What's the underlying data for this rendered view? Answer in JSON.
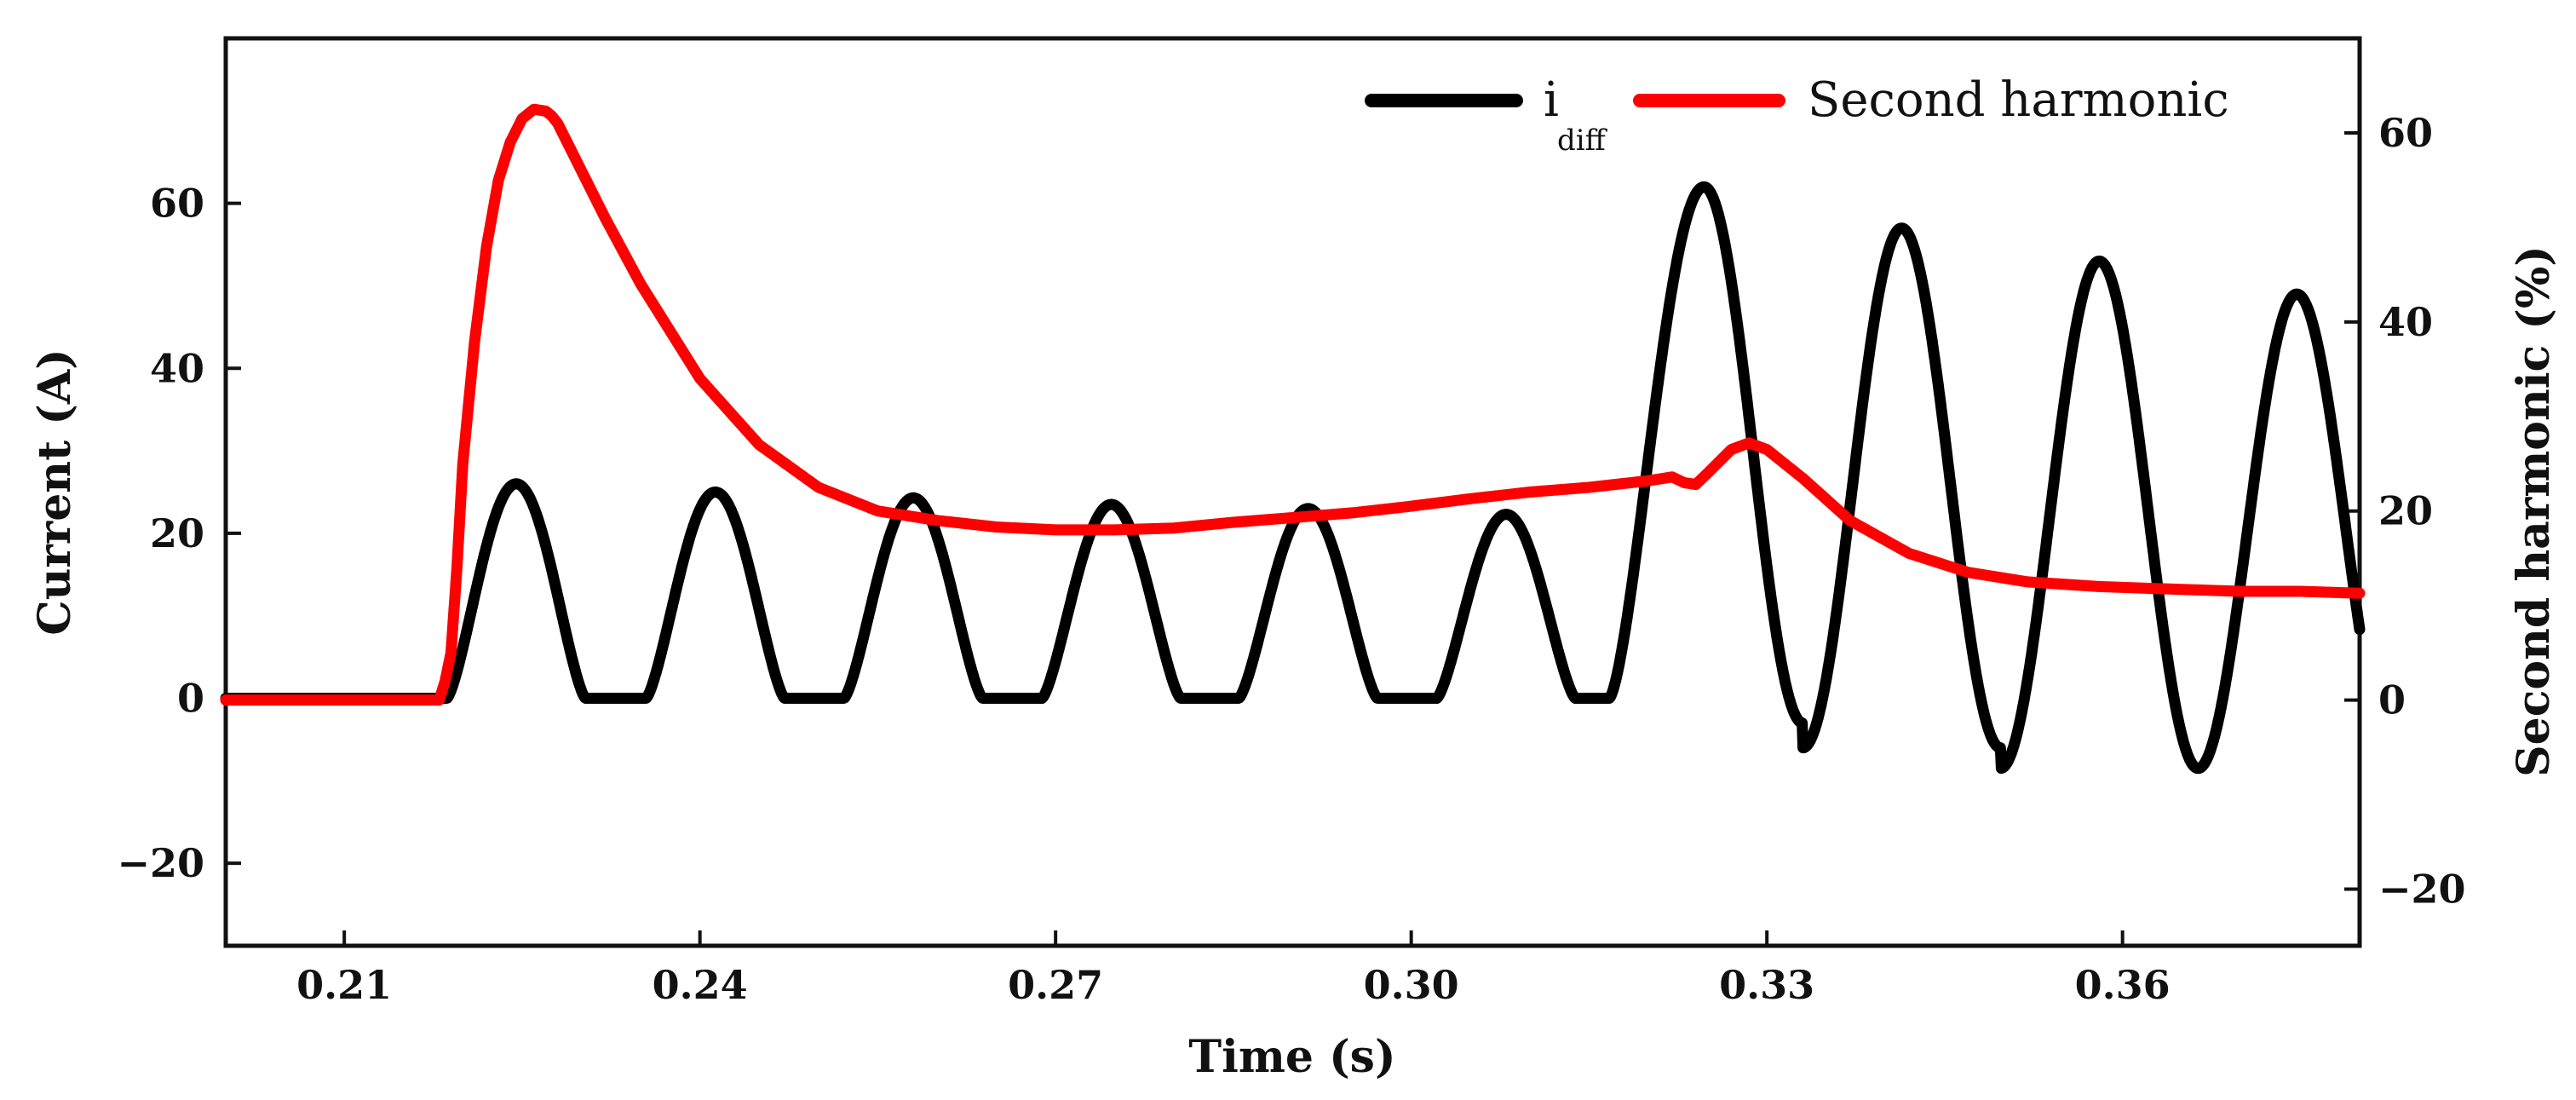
{
  "chart_data": {
    "type": "line",
    "x": {
      "label": "Time (s)",
      "range": [
        0.2,
        0.38
      ],
      "ticks": [
        0.21,
        0.24,
        0.27,
        0.3,
        0.33,
        0.36
      ],
      "tick_labels": [
        "0.21",
        "0.24",
        "0.27",
        "0.30",
        "0.33",
        "0.36"
      ]
    },
    "y_left": {
      "label": "Current (A)",
      "range": [
        -30,
        80
      ],
      "ticks": [
        -20,
        0,
        20,
        40,
        60
      ],
      "tick_labels": [
        "−20",
        "0",
        "20",
        "40",
        "60"
      ]
    },
    "y_right": {
      "label": "Second harmonic (%)",
      "range": [
        -26,
        70
      ],
      "ticks": [
        -20,
        0,
        20,
        40,
        60
      ],
      "tick_labels": [
        "−20",
        "0",
        "20",
        "40",
        "60"
      ]
    },
    "legend": {
      "position": "top-right",
      "entries": [
        {
          "label_main": "i",
          "label_sub": "diff",
          "color": "#000000"
        },
        {
          "label_main": "Second harmonic",
          "label_sub": "",
          "color": "#ff0000"
        }
      ]
    },
    "series": [
      {
        "name": "i_diff",
        "axis": "left",
        "color": "#000000",
        "description": "Inrush current: half-wave humps of period 0.0167 s from t=0.2183 s, then full sinusoid after t=0.3167 s",
        "onset_time": 0.2183,
        "period": 0.016667,
        "inrush_peak_times": [
          0.2245,
          0.2413,
          0.258,
          0.2747,
          0.2913,
          0.308
        ],
        "inrush_peak_values": [
          26,
          25,
          24.3,
          23.5,
          23,
          22.3
        ],
        "inrush_conduction_width": 0.0117,
        "fault_start_time": 0.3167,
        "fault_peak_times": [
          0.3247,
          0.3413,
          0.358,
          0.3747
        ],
        "fault_peak_values": [
          62,
          57,
          53,
          49
        ],
        "fault_trough_times": [
          0.333,
          0.3497,
          0.3663
        ],
        "fault_trough_values": [
          -3,
          -6,
          -8.5
        ]
      },
      {
        "name": "Second harmonic",
        "axis": "right",
        "color": "#ff0000",
        "x": [
          0.2,
          0.218,
          0.2185,
          0.219,
          0.2195,
          0.22,
          0.221,
          0.222,
          0.223,
          0.224,
          0.225,
          0.226,
          0.227,
          0.2275,
          0.228,
          0.23,
          0.232,
          0.235,
          0.24,
          0.245,
          0.25,
          0.255,
          0.26,
          0.265,
          0.27,
          0.275,
          0.28,
          0.285,
          0.29,
          0.295,
          0.3,
          0.305,
          0.31,
          0.315,
          0.32,
          0.322,
          0.323,
          0.324,
          0.325,
          0.327,
          0.3285,
          0.33,
          0.333,
          0.337,
          0.342,
          0.347,
          0.352,
          0.358,
          0.365,
          0.37,
          0.375,
          0.38
        ],
        "y": [
          0,
          0,
          2,
          5,
          14,
          25,
          38,
          48,
          55,
          59,
          61.5,
          62.5,
          62.3,
          61.8,
          61,
          56,
          51,
          44,
          34,
          27,
          22.5,
          20,
          19,
          18.3,
          18,
          18,
          18.2,
          18.8,
          19.3,
          19.8,
          20.5,
          21.3,
          22,
          22.5,
          23.2,
          23.6,
          23,
          22.8,
          24,
          26.5,
          27.2,
          26.5,
          23.5,
          19,
          15.5,
          13.5,
          12.5,
          12,
          11.7,
          11.5,
          11.5,
          11.3
        ]
      }
    ]
  }
}
